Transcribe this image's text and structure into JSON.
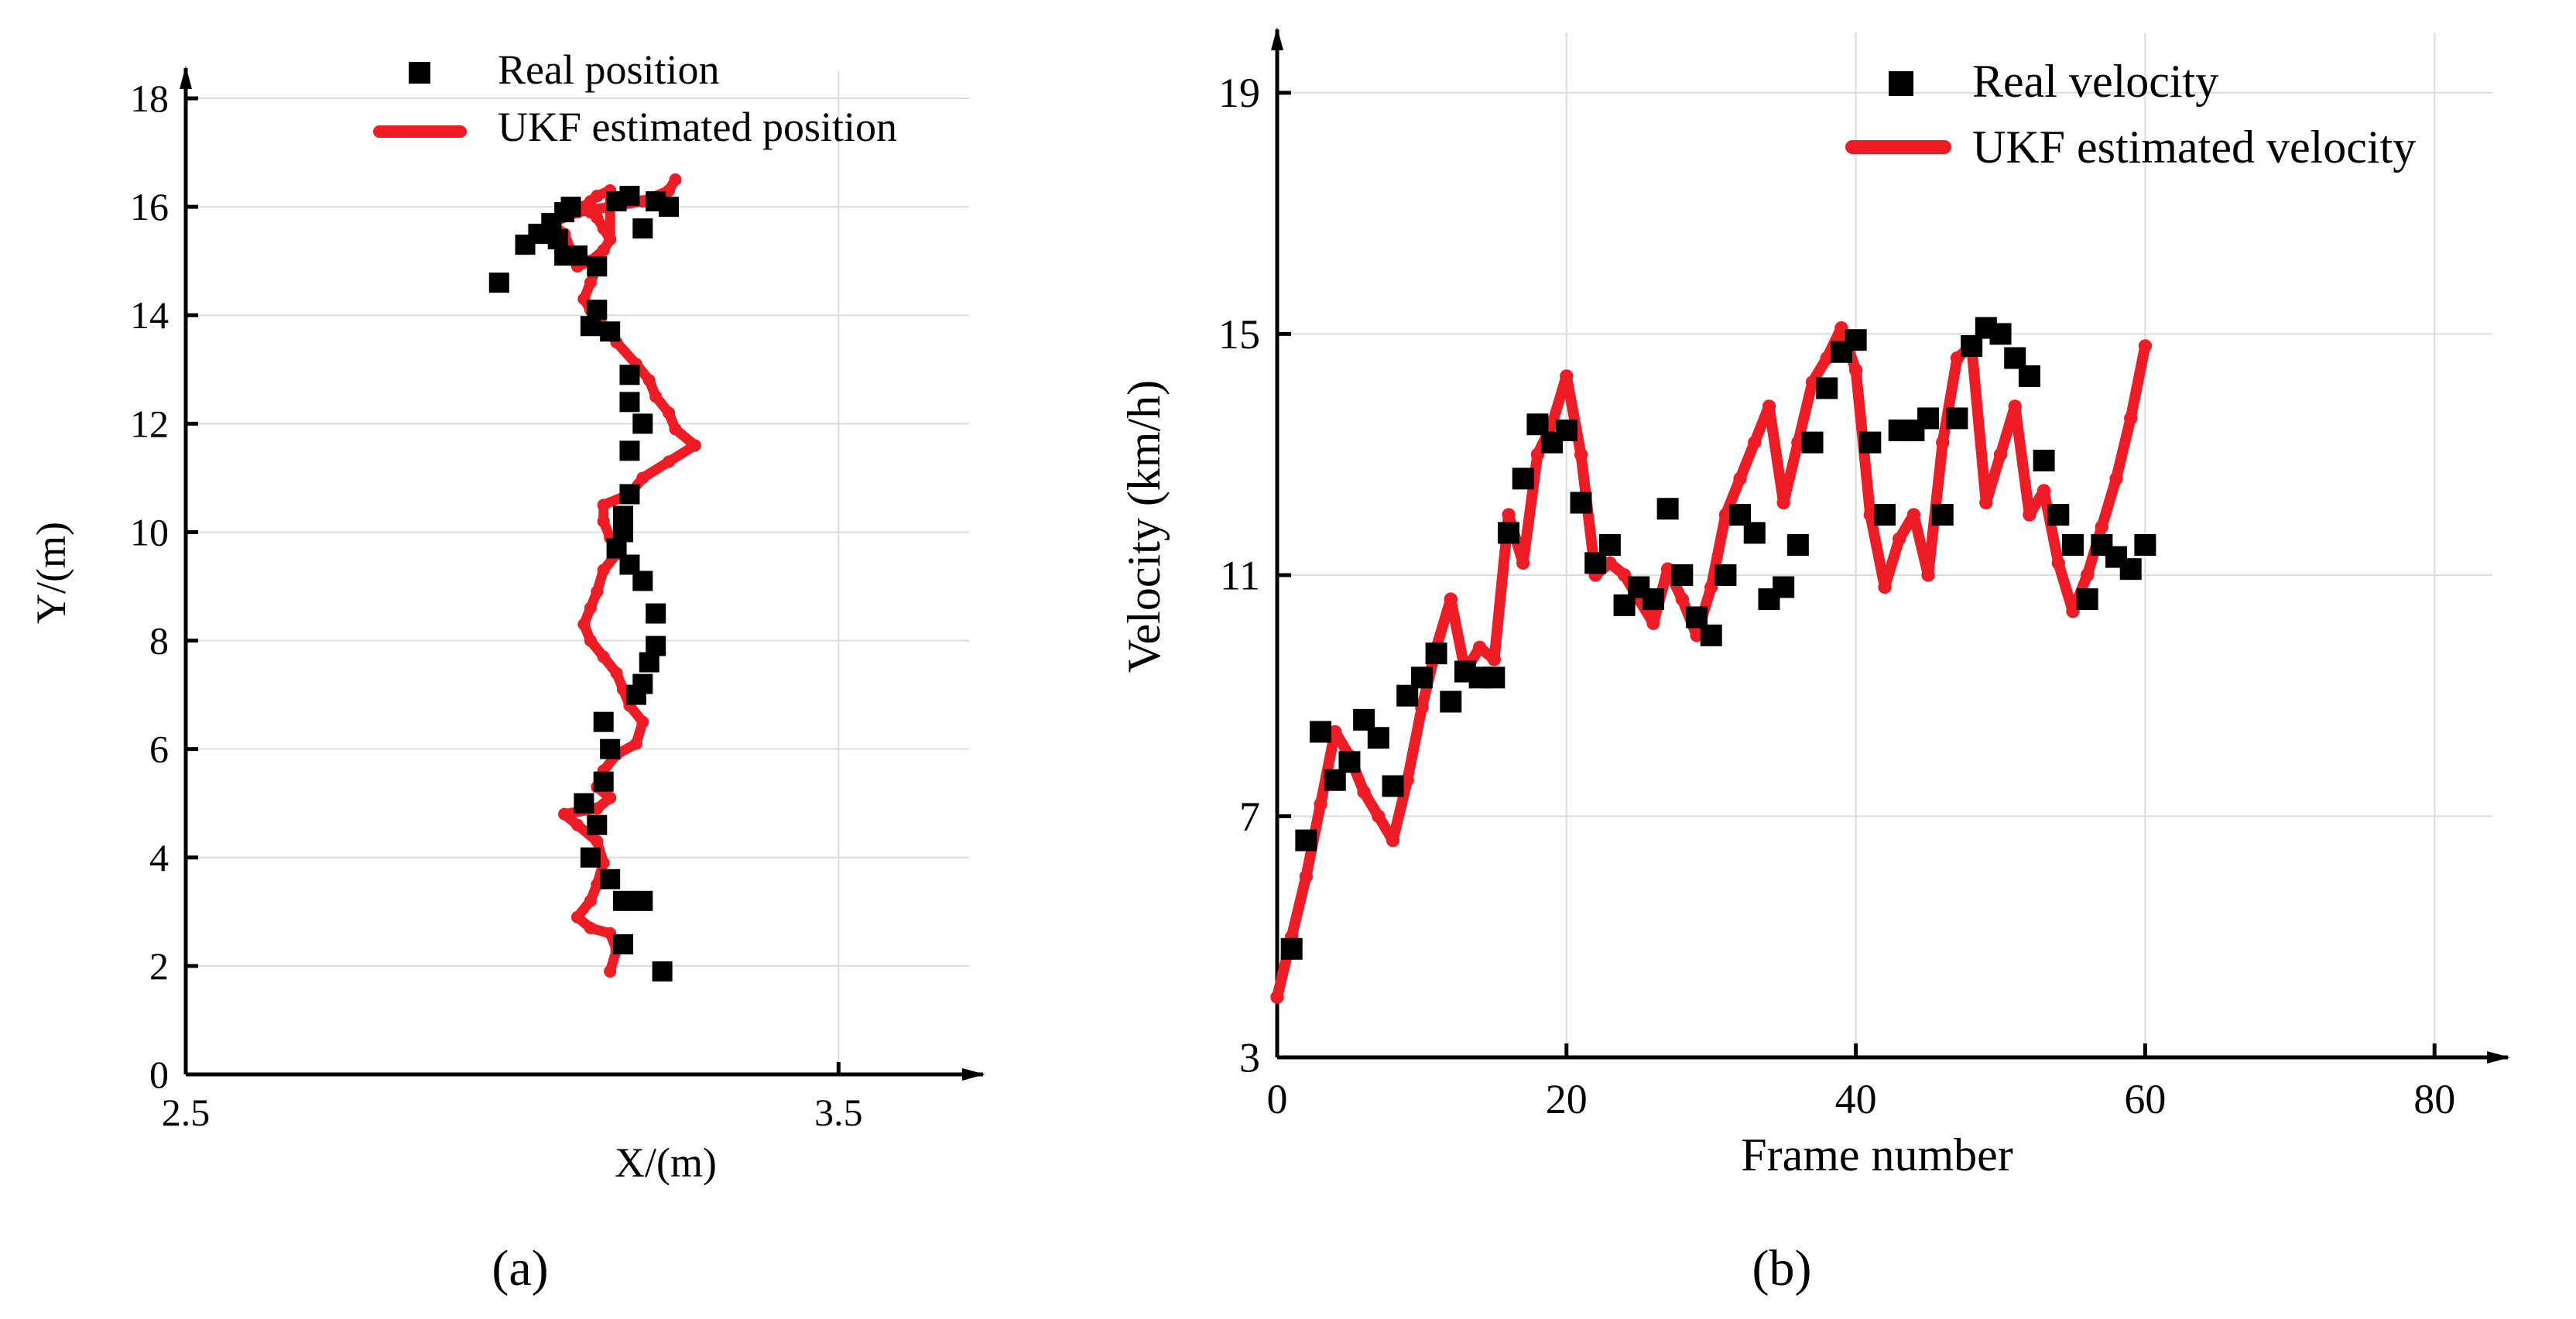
{
  "colors": {
    "axis": "#000000",
    "real": "#000000",
    "ukf": "#ee1c24",
    "grid": "#dcdcdc"
  },
  "chart_data": [
    {
      "panel": "a",
      "type": "scatter",
      "panel_label": "(a)",
      "xlabel": "X/(m)",
      "ylabel": "Y/(m)",
      "xlim": [
        2.5,
        3.7
      ],
      "ylim": [
        0,
        18.5
      ],
      "xticks": [
        2.5,
        3.5
      ],
      "xtick_labels": [
        "2.5",
        "3.5"
      ],
      "yticks": [
        0,
        2,
        4,
        6,
        8,
        10,
        12,
        14,
        16,
        18
      ],
      "ytick_labels": [
        "0",
        "2",
        "4",
        "6",
        "8",
        "10",
        "12",
        "14",
        "16",
        "18"
      ],
      "grid": true,
      "legend": {
        "position": "top-center",
        "items": [
          "Real position",
          "UKF estimated position"
        ]
      },
      "series": [
        {
          "name": "Real position",
          "style": "markers",
          "x": [
            3.23,
            3.17,
            3.17,
            3.15,
            3.2,
            3.12,
            3.13,
            3.14,
            3.11,
            3.15,
            3.14,
            3.19,
            3.2,
            3.21,
            3.22,
            3.22,
            3.2,
            3.18,
            3.16,
            3.17,
            3.17,
            3.18,
            3.18,
            3.2,
            3.18,
            3.18,
            3.15,
            3.13,
            3.12,
            3.13,
            3.1,
            3.08,
            3.07,
            3.04,
            3.06,
            3.08,
            3.16,
            3.09,
            3.18,
            3.22,
            3.24,
            3.2,
            3.02,
            2.98
          ],
          "y": [
            1.9,
            2.4,
            3.2,
            3.6,
            3.2,
            4.0,
            4.6,
            5.4,
            5.0,
            6.0,
            6.5,
            7.0,
            7.2,
            7.6,
            7.9,
            8.5,
            9.1,
            9.4,
            9.7,
            10.0,
            10.3,
            10.7,
            11.5,
            12.0,
            12.4,
            12.9,
            13.7,
            14.1,
            13.8,
            14.9,
            15.1,
            15.1,
            15.4,
            15.5,
            15.7,
            15.9,
            16.1,
            16.0,
            16.2,
            16.1,
            16.0,
            15.6,
            15.3,
            14.6
          ]
        },
        {
          "name": "UKF estimated position",
          "style": "line",
          "x": [
            3.15,
            3.16,
            3.15,
            3.12,
            3.1,
            3.12,
            3.13,
            3.14,
            3.13,
            3.1,
            3.08,
            3.13,
            3.15,
            3.13,
            3.14,
            3.16,
            3.19,
            3.2,
            3.18,
            3.17,
            3.16,
            3.14,
            3.12,
            3.11,
            3.12,
            3.13,
            3.14,
            3.16,
            3.15,
            3.14,
            3.14,
            3.18,
            3.2,
            3.24,
            3.28,
            3.25,
            3.24,
            3.22,
            3.21,
            3.19,
            3.16,
            3.14,
            3.12,
            3.11,
            3.12,
            3.13,
            3.13,
            3.14,
            3.15,
            3.14,
            3.13,
            3.12,
            3.11,
            3.12,
            3.13,
            3.15,
            3.15,
            3.14,
            3.12,
            3.1,
            3.08,
            3.06,
            3.1,
            3.15,
            3.2,
            3.24,
            3.25
          ],
          "y": [
            1.9,
            2.3,
            2.6,
            2.7,
            2.9,
            3.2,
            3.5,
            3.9,
            4.3,
            4.6,
            4.8,
            4.9,
            5.1,
            5.3,
            5.6,
            5.9,
            6.1,
            6.5,
            6.8,
            7.1,
            7.4,
            7.7,
            8.0,
            8.3,
            8.6,
            8.9,
            9.3,
            9.6,
            9.9,
            10.2,
            10.5,
            10.7,
            11.0,
            11.3,
            11.6,
            11.9,
            12.2,
            12.5,
            12.8,
            13.1,
            13.5,
            13.8,
            14.1,
            14.3,
            14.6,
            14.9,
            15.0,
            15.2,
            15.4,
            15.6,
            15.8,
            15.9,
            16.0,
            16.1,
            16.2,
            16.3,
            15.4,
            15.2,
            15.0,
            14.9,
            15.5,
            15.7,
            15.9,
            16.0,
            16.1,
            16.3,
            16.5
          ]
        }
      ]
    },
    {
      "panel": "b",
      "type": "line",
      "panel_label": "(b)",
      "xlabel": "Frame number",
      "ylabel": "Velocity (km/h)",
      "xlim": [
        0,
        84
      ],
      "ylim": [
        3,
        20
      ],
      "xticks": [
        0,
        20,
        40,
        60,
        80
      ],
      "xtick_labels": [
        "0",
        "20",
        "40",
        "60",
        "80"
      ],
      "yticks": [
        3,
        7,
        11,
        15,
        19
      ],
      "ytick_labels": [
        "3",
        "7",
        "11",
        "15",
        "19"
      ],
      "grid": true,
      "legend": {
        "position": "top-right",
        "items": [
          "Real velocity",
          "UKF estimated velocity"
        ]
      },
      "series": [
        {
          "name": "Real velocity",
          "style": "markers",
          "x": [
            1,
            2,
            3,
            4,
            5,
            6,
            7,
            8,
            9,
            10,
            11,
            12,
            13,
            14,
            15,
            16,
            17,
            18,
            19,
            20,
            21,
            22,
            23,
            24,
            25,
            26,
            27,
            28,
            29,
            30,
            31,
            32,
            33,
            34,
            35,
            36,
            37,
            38,
            39,
            40,
            41,
            42,
            43,
            44,
            45,
            46,
            47,
            48,
            49,
            50,
            51,
            52,
            53,
            54,
            55,
            56,
            57,
            58,
            59,
            60
          ],
          "y": [
            4.8,
            6.6,
            8.4,
            7.6,
            7.9,
            8.6,
            8.3,
            7.5,
            9.0,
            9.3,
            9.7,
            8.9,
            9.4,
            9.3,
            9.3,
            11.7,
            12.6,
            13.5,
            13.2,
            13.4,
            12.2,
            11.2,
            11.5,
            10.5,
            10.8,
            10.6,
            12.1,
            11.0,
            10.3,
            10.0,
            11.0,
            12.0,
            11.7,
            10.6,
            10.8,
            11.5,
            13.2,
            14.1,
            14.7,
            14.9,
            13.2,
            12.0,
            13.4,
            13.4,
            13.6,
            12.0,
            13.6,
            14.8,
            15.1,
            15.0,
            14.6,
            14.3,
            12.9,
            12.0,
            11.5,
            10.6,
            11.5,
            11.3,
            11.1,
            11.5
          ]
        },
        {
          "name": "UKF estimated velocity",
          "style": "line",
          "x": [
            0,
            1,
            2,
            3,
            4,
            5,
            6,
            7,
            8,
            9,
            10,
            11,
            12,
            13,
            14,
            15,
            16,
            17,
            18,
            19,
            20,
            21,
            22,
            23,
            24,
            25,
            26,
            27,
            28,
            29,
            30,
            31,
            32,
            33,
            34,
            35,
            36,
            37,
            38,
            39,
            40,
            41,
            42,
            43,
            44,
            45,
            46,
            47,
            48,
            49,
            50,
            51,
            52,
            53,
            54,
            55,
            56,
            57,
            58,
            59,
            60
          ],
          "y": [
            4.0,
            5.0,
            6.0,
            7.2,
            8.4,
            8.0,
            7.4,
            7.0,
            6.6,
            7.6,
            8.8,
            9.8,
            10.6,
            9.4,
            9.8,
            9.6,
            12.0,
            11.2,
            13.0,
            13.5,
            14.3,
            13.0,
            11.0,
            11.2,
            11.0,
            10.6,
            10.2,
            11.1,
            10.6,
            10.0,
            10.8,
            12.0,
            12.6,
            13.2,
            13.8,
            12.2,
            13.2,
            14.2,
            14.6,
            15.1,
            14.4,
            12.0,
            10.8,
            11.6,
            12.0,
            11.0,
            13.2,
            14.6,
            14.8,
            12.2,
            13.0,
            13.8,
            12.0,
            12.4,
            11.2,
            10.4,
            11.0,
            11.8,
            12.6,
            13.6,
            14.8
          ]
        }
      ]
    }
  ]
}
